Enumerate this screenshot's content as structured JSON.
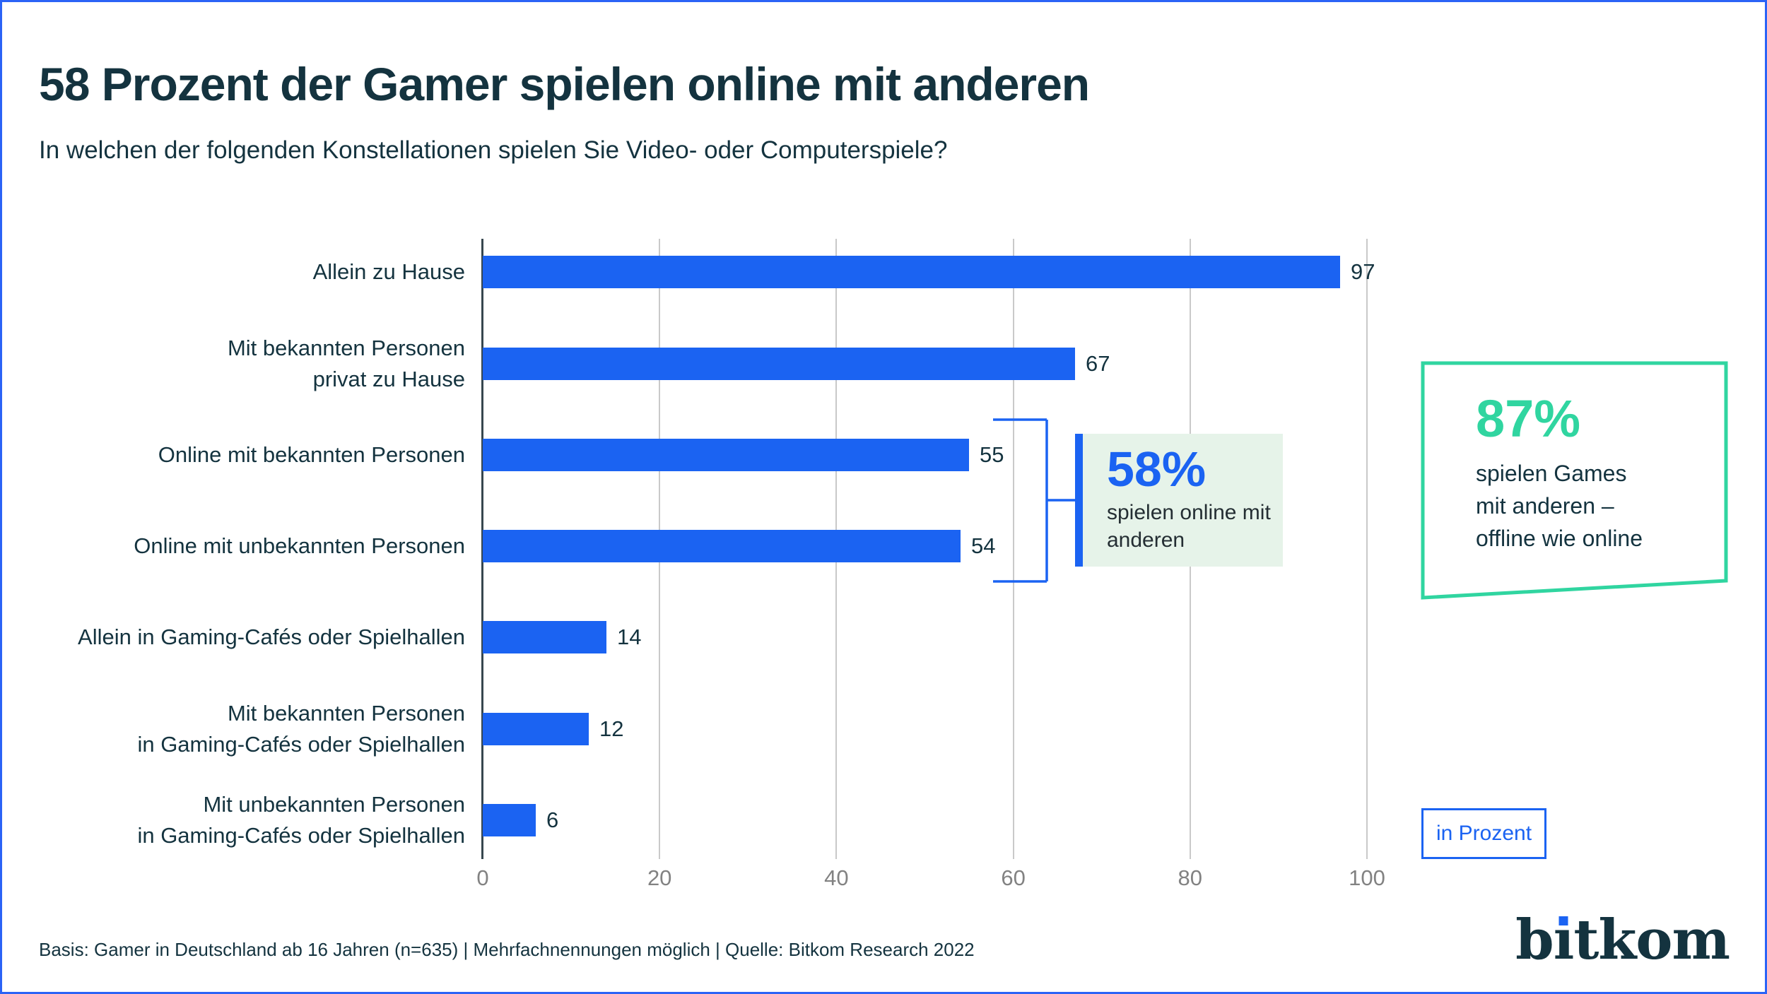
{
  "header": {
    "title": "58 Prozent der Gamer spielen online mit anderen",
    "subtitle": "In welchen der folgenden Konstellationen spielen Sie Video- oder Computerspiele?"
  },
  "chart_data": {
    "type": "bar",
    "orientation": "horizontal",
    "title": "58 Prozent der Gamer spielen online mit anderen",
    "subtitle": "In welchen der folgenden Konstellationen spielen Sie Video- oder Computerspiele?",
    "categories": [
      "Allein zu Hause",
      "Mit bekannten Personen\nprivat zu Hause",
      "Online mit bekannten Personen",
      "Online mit unbekannten Personen",
      "Allein in Gaming-Cafés oder Spielhallen",
      "Mit bekannten Personen\nin Gaming-Cafés oder Spielhallen",
      "Mit unbekannten Personen\nin Gaming-Cafés oder Spielhallen"
    ],
    "values": [
      97,
      67,
      55,
      54,
      14,
      12,
      6
    ],
    "x_ticks": [
      0,
      20,
      40,
      60,
      80,
      100
    ],
    "xlim": [
      0,
      100
    ],
    "grid": true,
    "legend": false,
    "value_labels": true,
    "unit": "Prozent",
    "unit_label": "in Prozent",
    "bar_color": "#1b63f2"
  },
  "callouts": {
    "group_58": {
      "value": "58%",
      "caption": "spielen online mit\nanderen",
      "grouped_categories": [
        "Online mit bekannten Personen",
        "Online mit unbekannten Personen"
      ]
    },
    "highlight_87": {
      "value": "87%",
      "caption": "spielen Games\nmit anderen –\noffline wie online"
    }
  },
  "footer": {
    "source": "Basis: Gamer in Deutschland ab 16 Jahren (n=635) | Mehrfachnennungen möglich | Quelle: Bitkom Research 2022"
  },
  "logo": {
    "text": "bitkom"
  },
  "colors": {
    "bar_blue": "#1b63f2",
    "border_blue": "#2b63f6",
    "dark_navy": "#14333f",
    "green_accent": "#30d5a0",
    "green_tint_bg": "#e6f3e9",
    "grid_gray": "#c9c9c9",
    "tick_gray": "#828282"
  }
}
